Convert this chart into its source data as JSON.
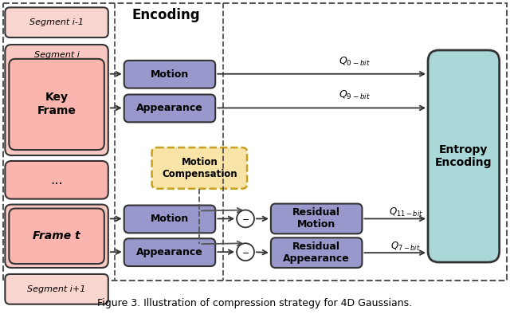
{
  "title": "Figure 3. Illustration of compression strategy for 4D Gaussians.",
  "bg_color": "#ffffff",
  "outer_border_color": "#333333",
  "left_col": {
    "seg_i_minus1": {
      "label": "Segment i-1",
      "fc": "#f9d5d0",
      "ec": "#333333"
    },
    "seg_i_outer": {
      "fc": "#f9c8c3",
      "ec": "#333333"
    },
    "seg_i_label": "Segment i",
    "key_frame": {
      "label": "Key\nFrame",
      "fc": "#f9b5ae",
      "ec": "#333333"
    },
    "dots": {
      "label": "...",
      "fc": "#f9b5ae",
      "ec": "#333333"
    },
    "frame_t_outer": {
      "fc": "#f9c8c3",
      "ec": "#333333"
    },
    "frame_t": {
      "label": "Frame t",
      "fc": "#f9b5ae",
      "ec": "#333333"
    },
    "seg_i_plus1": {
      "label": "Segment i+1",
      "fc": "#f9d5d0",
      "ec": "#333333"
    }
  },
  "motion1": {
    "label": "Motion",
    "fc": "#9898cc",
    "ec": "#333333"
  },
  "appear1": {
    "label": "Appearance",
    "fc": "#9898cc",
    "ec": "#333333"
  },
  "motion_comp": {
    "label": "Motion\nCompensation",
    "fc": "#f9e4a8",
    "ec": "#c8a020"
  },
  "motion2": {
    "label": "Motion",
    "fc": "#9898cc",
    "ec": "#333333"
  },
  "appear2": {
    "label": "Appearance",
    "fc": "#9898cc",
    "ec": "#333333"
  },
  "res_motion": {
    "label": "Residual\nMotion",
    "fc": "#9898cc",
    "ec": "#333333"
  },
  "res_appear": {
    "label": "Residual\nAppearance",
    "fc": "#9898cc",
    "ec": "#333333"
  },
  "entropy": {
    "label": "Entropy\nEncoding",
    "fc": "#aad8d8",
    "ec": "#333333"
  },
  "arrow_color": "#333333",
  "dashed_color": "#555555"
}
